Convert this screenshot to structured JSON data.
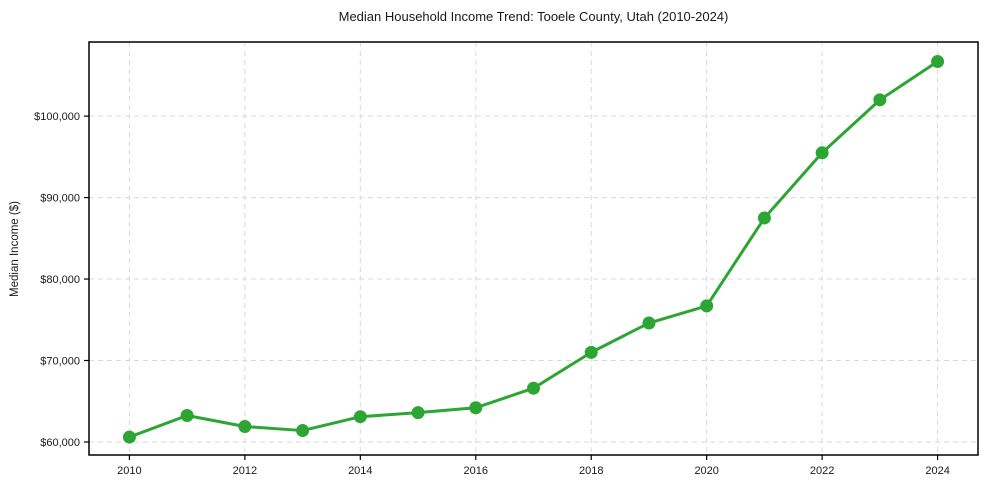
{
  "chart_data": {
    "type": "line",
    "title": "Median Household Income Trend: Tooele County, Utah (2010-2024)",
    "xlabel": "",
    "ylabel": "Median Income ($)",
    "x": [
      2010,
      2011,
      2012,
      2013,
      2014,
      2015,
      2016,
      2017,
      2018,
      2019,
      2020,
      2021,
      2022,
      2023,
      2024
    ],
    "values": [
      60600,
      63250,
      61900,
      61400,
      63100,
      63600,
      64200,
      66600,
      71000,
      74600,
      76700,
      87500,
      95500,
      102000,
      106700
    ],
    "xlim": [
      2009.3,
      2024.7
    ],
    "ylim": [
      58400,
      109100
    ],
    "x_ticks": [
      2010,
      2012,
      2014,
      2016,
      2018,
      2020,
      2022,
      2024
    ],
    "y_ticks": [
      60000,
      70000,
      80000,
      90000,
      100000
    ],
    "y_tick_labels": [
      "$60,000",
      "$70,000",
      "$80,000",
      "$90,000",
      "$100,000"
    ],
    "line_color": "#2da534",
    "marker": "circle",
    "grid": "dashed",
    "grid_color": "#d9d9d9",
    "axis_color": "#000000",
    "legend": "none"
  }
}
